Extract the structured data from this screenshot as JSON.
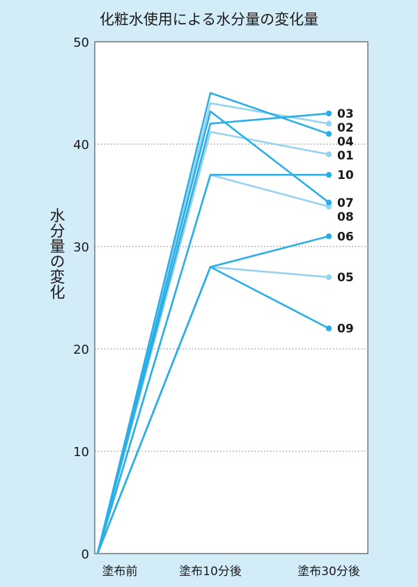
{
  "chart_data": {
    "type": "line",
    "title": "化粧水使用による水分量の変化量",
    "ylabel": "水分量の変化",
    "xlabel": "",
    "categories": [
      "塗布前",
      "塗布10分後",
      "塗布30分後"
    ],
    "ylim": [
      0,
      50
    ],
    "yticks": [
      0,
      10,
      20,
      30,
      40,
      50
    ],
    "grid": true,
    "gridlines_at": [
      10,
      20,
      30,
      40
    ],
    "legend": "none",
    "colors": {
      "dark": "#2aaee6",
      "light": "#96d3f2"
    },
    "series": [
      {
        "name": "01",
        "values": [
          0,
          41.2,
          39.0
        ],
        "shade": "light"
      },
      {
        "name": "02",
        "values": [
          0,
          44.0,
          42.0
        ],
        "shade": "light"
      },
      {
        "name": "03",
        "values": [
          0,
          42.0,
          43.0
        ],
        "shade": "dark"
      },
      {
        "name": "04",
        "values": [
          0,
          45.0,
          41.0
        ],
        "shade": "dark"
      },
      {
        "name": "05",
        "values": [
          0,
          28.0,
          27.0
        ],
        "shade": "light"
      },
      {
        "name": "06",
        "values": [
          0,
          28.0,
          31.0
        ],
        "shade": "dark"
      },
      {
        "name": "07",
        "values": [
          0,
          43.2,
          34.3
        ],
        "shade": "dark"
      },
      {
        "name": "08",
        "values": [
          0,
          37.0,
          33.9
        ],
        "shade": "light"
      },
      {
        "name": "09",
        "values": [
          0,
          28.0,
          22.0
        ],
        "shade": "dark"
      },
      {
        "name": "10",
        "values": [
          0,
          37.0,
          37.0
        ],
        "shade": "dark"
      }
    ]
  }
}
